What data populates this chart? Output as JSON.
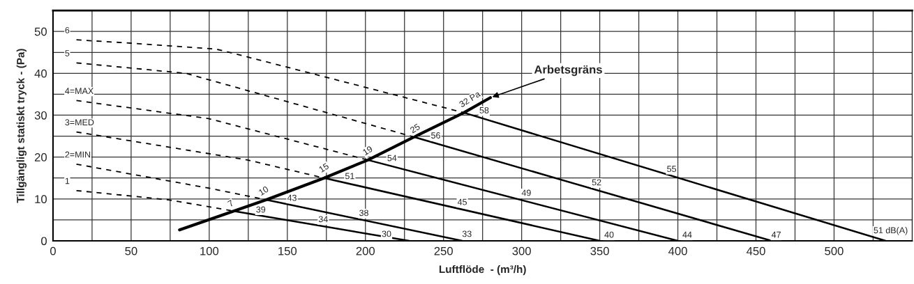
{
  "chart_data": {
    "type": "line",
    "xlabel": "Luftflöde  - (m³/h)",
    "ylabel": "Tillgängligt statiskt tryck - (Pa)",
    "xlim": [
      0,
      550
    ],
    "ylim": [
      0,
      55
    ],
    "xticks": [
      0,
      {
        "value": 25,
        "label": null
      },
      50,
      {
        "value": 75,
        "label": null
      },
      100,
      {
        "value": 125,
        "label": null
      },
      150,
      {
        "value": 175,
        "label": null
      },
      200,
      {
        "value": 225,
        "label": null
      },
      250,
      {
        "value": 275,
        "label": null
      },
      300,
      {
        "value": 325,
        "label": null
      },
      350,
      {
        "value": 375,
        "label": null
      },
      400,
      {
        "value": 425,
        "label": null
      },
      450,
      {
        "value": 475,
        "label": null
      },
      500,
      {
        "value": 525,
        "label": null
      }
    ],
    "yticks": [
      0,
      {
        "value": 5,
        "label": null
      },
      10,
      {
        "value": 15,
        "label": null
      },
      20,
      {
        "value": 25,
        "label": null
      },
      30,
      {
        "value": 35,
        "label": null
      },
      40,
      {
        "value": 45,
        "label": null
      },
      50
    ],
    "grid": true,
    "legend": false,
    "series": [
      {
        "name": "6",
        "color": "#000000",
        "line_style": "dashed",
        "x": [
          15,
          50,
          104,
          110,
          263
        ],
        "values": [
          48,
          47.2,
          45.8,
          45.3,
          30.6
        ]
      },
      {
        "color": "#000000",
        "line_style": "solid",
        "x": [
          263,
          533
        ],
        "values": [
          30.6,
          0
        ]
      },
      {
        "name": "5",
        "color": "#000000",
        "line_style": "dashed",
        "x": [
          15,
          85,
          231
        ],
        "values": [
          42.5,
          40,
          24.8
        ]
      },
      {
        "color": "#000000",
        "line_style": "solid",
        "x": [
          231,
          460
        ],
        "values": [
          24.8,
          0
        ]
      },
      {
        "name": "4=MAX",
        "color": "#000000",
        "line_style": "dashed",
        "x": [
          15,
          99.5,
          201.6
        ],
        "values": [
          33.5,
          29.2,
          19.3
        ]
      },
      {
        "color": "#000000",
        "line_style": "solid",
        "x": [
          201.6,
          400
        ],
        "values": [
          19.3,
          0
        ]
      },
      {
        "name": "3=MED",
        "color": "#000000",
        "line_style": "dashed",
        "x": [
          15,
          124.6,
          173.6
        ],
        "values": [
          26,
          19.3,
          15
        ]
      },
      {
        "color": "#000000",
        "line_style": "solid",
        "x": [
          173.6,
          350
        ],
        "values": [
          15,
          0
        ]
      },
      {
        "name": "2=MIN",
        "color": "#000000",
        "line_style": "dashed",
        "x": [
          15,
          99.5,
          136.5
        ],
        "values": [
          18.3,
          12.6,
          9.8
        ]
      },
      {
        "color": "#000000",
        "line_style": "solid",
        "x": [
          136.5,
          262
        ],
        "values": [
          9.8,
          0
        ]
      },
      {
        "name": "1",
        "color": "#000000",
        "line_style": "dashed",
        "x": [
          15,
          74,
          115.7
        ],
        "values": [
          12,
          9.8,
          7.1
        ]
      },
      {
        "color": "#000000",
        "line_style": "solid",
        "x": [
          115.7,
          228
        ],
        "values": [
          7.1,
          0
        ]
      },
      {
        "name": "Arbetsgräns",
        "color": "#000000",
        "line_style": "solid",
        "x": [
          81,
          115.7,
          136.5,
          173.6,
          201.6,
          231,
          263,
          280
        ],
        "values": [
          2.6,
          7.1,
          9.8,
          15,
          19.3,
          24.8,
          30.6,
          34.2
        ]
      }
    ],
    "annotations": [
      {
        "text": "7",
        "x": 114,
        "y": 8.8
      },
      {
        "text": "10",
        "x": 135,
        "y": 11.8
      },
      {
        "text": "15",
        "x": 173.6,
        "y": 17.3
      },
      {
        "text": "19",
        "x": 201.6,
        "y": 21.4
      },
      {
        "text": "25",
        "x": 232,
        "y": 26.7
      },
      {
        "text": "32 Pa",
        "x": 267,
        "y": 33.7
      },
      {
        "text": "58",
        "x": 276,
        "y": 31
      },
      {
        "text": "55",
        "x": 396,
        "y": 17
      },
      "51 dB(A)",
      {
        "text": "56",
        "x": 245,
        "y": 25
      },
      {
        "text": "52",
        "x": 348,
        "y": 13.8
      },
      {
        "text": "47",
        "x": 463,
        "y": 1.3
      },
      {
        "text": "54",
        "x": 217,
        "y": 19.6
      },
      {
        "text": "49",
        "x": 303,
        "y": 11.3
      },
      {
        "text": "44",
        "x": 406,
        "y": 1.3
      },
      {
        "text": "51",
        "x": 190,
        "y": 15.3
      },
      {
        "text": "45",
        "x": 262,
        "y": 9.1
      },
      {
        "text": "40",
        "x": 356,
        "y": 1.3
      },
      {
        "text": "43",
        "x": 153,
        "y": 10.1
      },
      {
        "text": "38",
        "x": 199,
        "y": 6.5
      },
      {
        "text": "33",
        "x": 265,
        "y": 1.5
      },
      {
        "text": "39",
        "x": 133,
        "y": 7.3
      },
      {
        "text": "34",
        "x": 173,
        "y": 5
      },
      {
        "text": "30",
        "x": 213.5,
        "y": 1.5
      }
    ]
  }
}
